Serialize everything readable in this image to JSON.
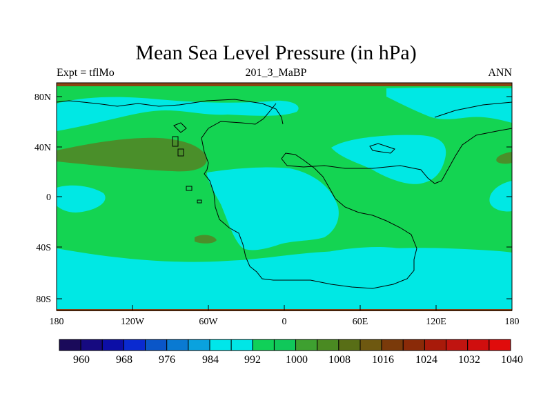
{
  "title": "Mean Sea Level Pressure (in hPa)",
  "subtitle_left": "Expt = tflMo",
  "subtitle_center": "201_3_MaBP",
  "subtitle_right": "ANN",
  "lat_ticks": [
    "80N",
    "40N",
    "0",
    "40S",
    "80S"
  ],
  "lon_ticks": [
    "180",
    "120W",
    "60W",
    "0",
    "60E",
    "120E",
    "180"
  ],
  "colorbar": {
    "colors": [
      "#1a0a5a",
      "#160a80",
      "#0c0ea6",
      "#0a2ad0",
      "#0a56c8",
      "#0a7ad2",
      "#0aa2de",
      "#00e6ea",
      "#00e6e6",
      "#10d058",
      "#10c85a",
      "#3ea030",
      "#4a8a22",
      "#586e16",
      "#6e5810",
      "#7a3a0a",
      "#8a2a08",
      "#a81a0a",
      "#c01410",
      "#d00e0e",
      "#e00c0c"
    ],
    "labels": [
      "960",
      "968",
      "976",
      "984",
      "992",
      "1000",
      "1008",
      "1016",
      "1024",
      "1032",
      "1040"
    ]
  },
  "fill_colors": {
    "background_green": "#14d452",
    "cyan": "#00e8e4",
    "olive": "#4a8f2a",
    "brown": "#8b4513"
  }
}
